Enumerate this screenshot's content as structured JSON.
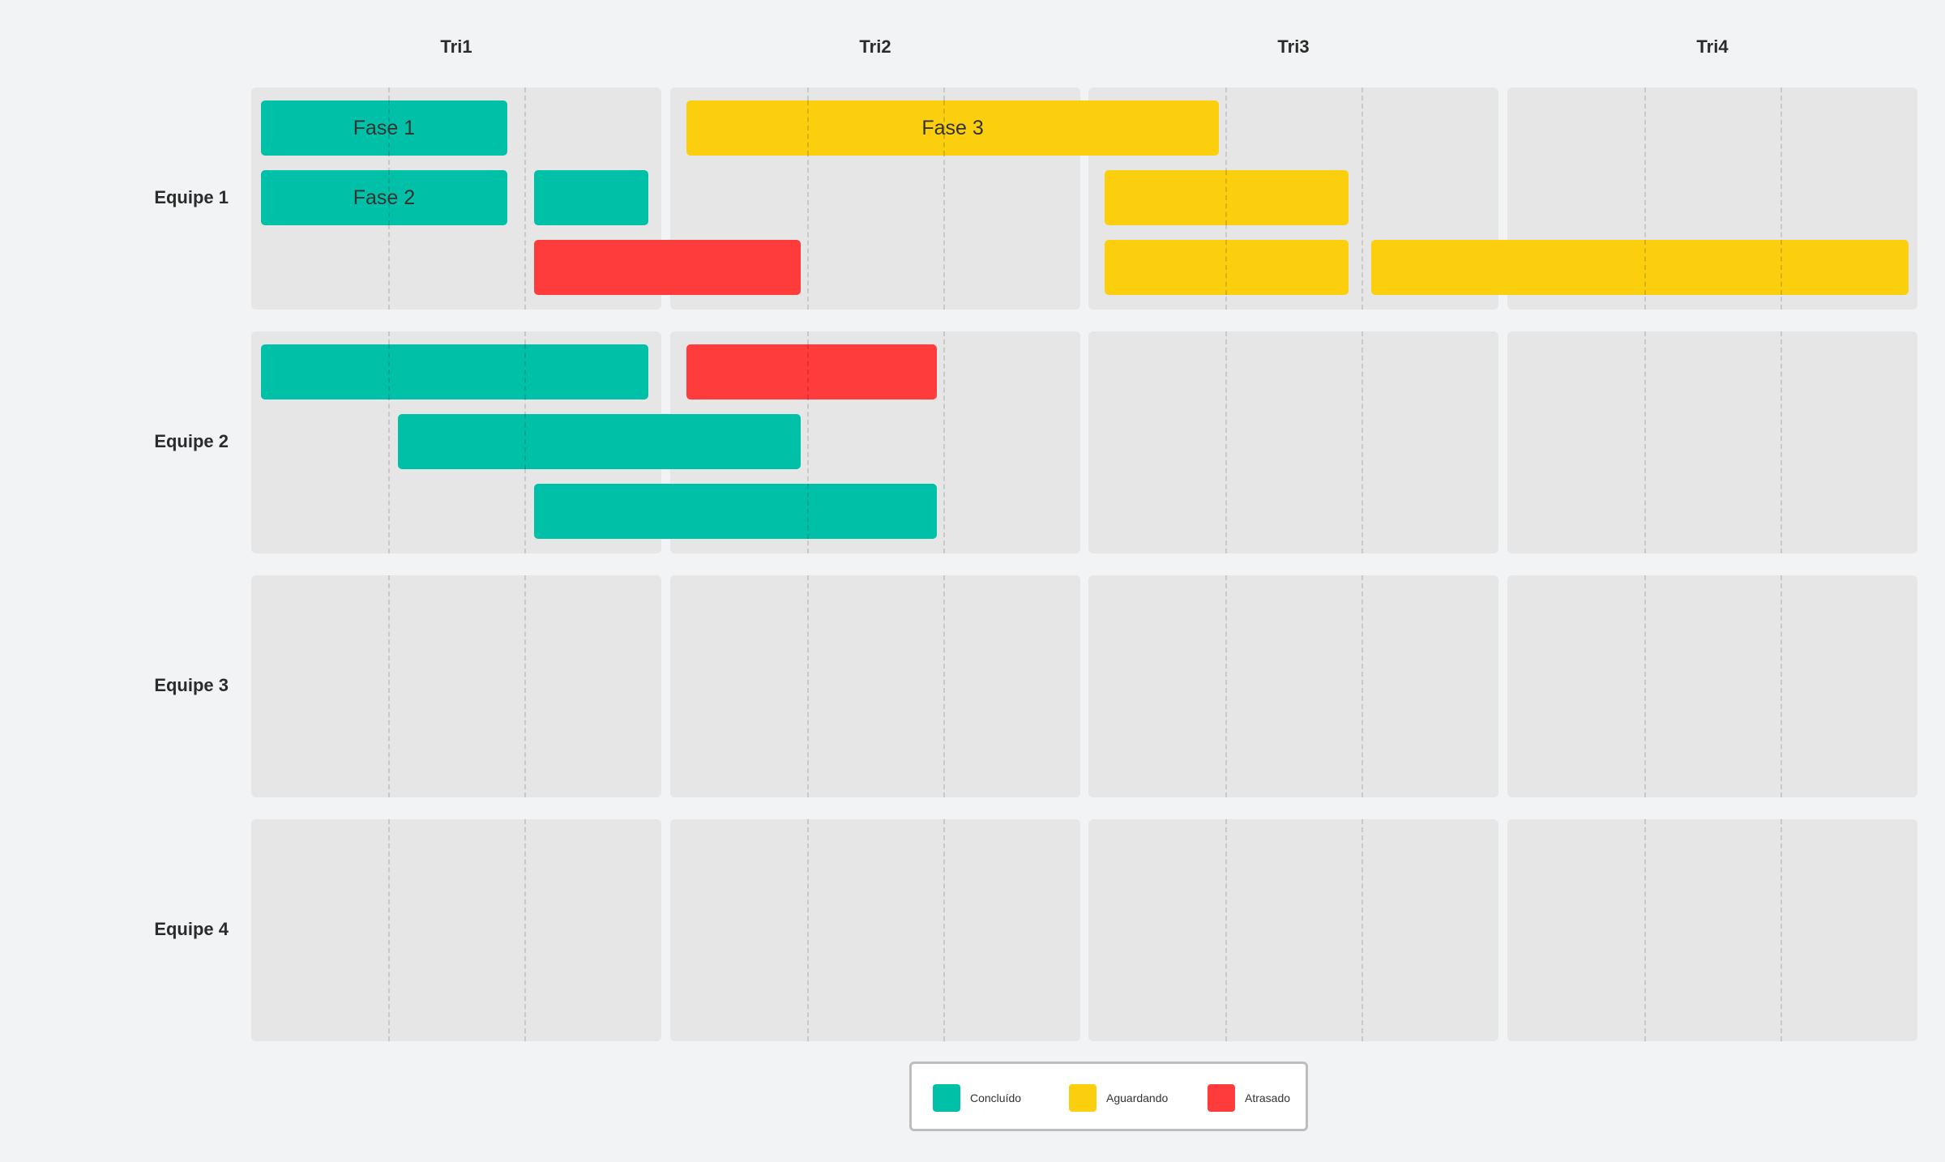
{
  "quarters": [
    "Tri1",
    "Tri2",
    "Tri3",
    "Tri4"
  ],
  "teams": [
    "Equipe 1",
    "Equipe 2",
    "Equipe 3",
    "Equipe 4"
  ],
  "colors": {
    "concluido": "#00c1a7",
    "aguardando": "#fbcf0d",
    "atrasado": "#ff3c3c",
    "cell": "#e6e6e6",
    "background": "#f2f3f4"
  },
  "tasks": [
    {
      "team": 0,
      "lane": 0,
      "start": 0.0,
      "end": 1.92,
      "status": "concluido",
      "label": "Fase 1"
    },
    {
      "team": 0,
      "lane": 0,
      "start": 3.05,
      "end": 7.0,
      "status": "aguardando",
      "label": "Fase 3"
    },
    {
      "team": 0,
      "lane": 1,
      "start": 0.0,
      "end": 1.92,
      "status": "concluido",
      "label": "Fase 2"
    },
    {
      "team": 0,
      "lane": 1,
      "start": 2.0,
      "end": 2.95,
      "status": "concluido",
      "label": ""
    },
    {
      "team": 0,
      "lane": 1,
      "start": 6.05,
      "end": 7.95,
      "status": "aguardando",
      "label": ""
    },
    {
      "team": 0,
      "lane": 2,
      "start": 2.0,
      "end": 4.0,
      "status": "atrasado",
      "label": ""
    },
    {
      "team": 0,
      "lane": 2,
      "start": 6.05,
      "end": 7.95,
      "status": "aguardando",
      "label": ""
    },
    {
      "team": 0,
      "lane": 2,
      "start": 8.0,
      "end": 11.98,
      "status": "aguardando",
      "label": ""
    },
    {
      "team": 1,
      "lane": 0,
      "start": 0.0,
      "end": 2.95,
      "status": "concluido",
      "label": ""
    },
    {
      "team": 1,
      "lane": 0,
      "start": 3.05,
      "end": 5.0,
      "status": "atrasado",
      "label": ""
    },
    {
      "team": 1,
      "lane": 1,
      "start": 1.0,
      "end": 4.0,
      "status": "concluido",
      "label": ""
    },
    {
      "team": 1,
      "lane": 2,
      "start": 2.0,
      "end": 5.0,
      "status": "concluido",
      "label": ""
    }
  ],
  "legend": [
    {
      "key": "concluido",
      "label": "Concluído"
    },
    {
      "key": "aguardando",
      "label": "Aguardando"
    },
    {
      "key": "atrasado",
      "label": "Atrasado"
    }
  ]
}
